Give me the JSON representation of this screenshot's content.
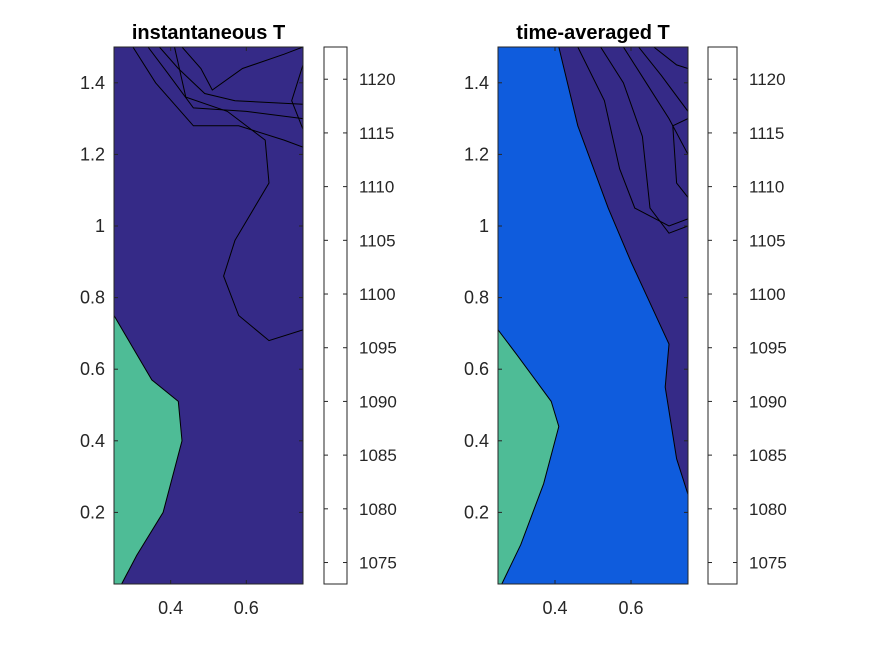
{
  "chart_data": [
    {
      "type": "contour",
      "title": "instantaneous T",
      "xlabel": "",
      "ylabel": "",
      "xlim": [
        0.25,
        0.75
      ],
      "ylim": [
        0.0,
        1.5
      ],
      "xticks": [
        "0.4",
        "0.6"
      ],
      "yticks": [
        "0.2",
        "0.4",
        "0.6",
        "0.8",
        "1",
        "1.2",
        "1.4"
      ],
      "clim": [
        1073,
        1123
      ],
      "colorbar_ticks": [
        "1075",
        "1080",
        "1085",
        "1090",
        "1095",
        "1100",
        "1105",
        "1110",
        "1115",
        "1120"
      ],
      "regions": [
        {
          "level_label": "1075",
          "color": "#352a87"
        },
        {
          "level_label": "1100",
          "color": "#4ebc96"
        }
      ],
      "boundary_1100_region": [
        [
          0.25,
          0.75
        ],
        [
          0.3,
          0.66
        ],
        [
          0.35,
          0.57
        ],
        [
          0.42,
          0.51
        ],
        [
          0.43,
          0.4
        ],
        [
          0.38,
          0.2
        ],
        [
          0.31,
          0.08
        ],
        [
          0.27,
          0.0
        ]
      ],
      "contour_lines": [
        [
          [
            0.41,
            1.5
          ],
          [
            0.44,
            1.36
          ],
          [
            0.55,
            1.32
          ],
          [
            0.65,
            1.24
          ],
          [
            0.66,
            1.12
          ],
          [
            0.57,
            0.96
          ],
          [
            0.54,
            0.86
          ],
          [
            0.58,
            0.75
          ],
          [
            0.66,
            0.68
          ],
          [
            0.75,
            0.71
          ]
        ],
        [
          [
            0.3,
            1.5
          ],
          [
            0.36,
            1.4
          ],
          [
            0.46,
            1.28
          ],
          [
            0.58,
            1.28
          ],
          [
            0.7,
            1.24
          ],
          [
            0.75,
            1.22
          ]
        ],
        [
          [
            0.34,
            1.5
          ],
          [
            0.39,
            1.43
          ],
          [
            0.46,
            1.33
          ],
          [
            0.6,
            1.32
          ],
          [
            0.75,
            1.3
          ]
        ],
        [
          [
            0.37,
            1.5
          ],
          [
            0.42,
            1.44
          ],
          [
            0.49,
            1.37
          ],
          [
            0.57,
            1.35
          ],
          [
            0.75,
            1.34
          ]
        ],
        [
          [
            0.43,
            1.5
          ],
          [
            0.48,
            1.44
          ],
          [
            0.51,
            1.38
          ],
          [
            0.59,
            1.44
          ],
          [
            0.7,
            1.48
          ],
          [
            0.75,
            1.5
          ]
        ],
        [
          [
            0.75,
            1.45
          ],
          [
            0.72,
            1.35
          ],
          [
            0.75,
            1.27
          ]
        ]
      ]
    },
    {
      "type": "contour",
      "title": "time-averaged T",
      "xlabel": "",
      "ylabel": "",
      "xlim": [
        0.25,
        0.75
      ],
      "ylim": [
        0.0,
        1.5
      ],
      "xticks": [
        "0.4",
        "0.6"
      ],
      "yticks": [
        "0.2",
        "0.4",
        "0.6",
        "0.8",
        "1",
        "1.2",
        "1.4"
      ],
      "clim": [
        1073,
        1123
      ],
      "colorbar_ticks": [
        "1075",
        "1080",
        "1085",
        "1090",
        "1095",
        "1100",
        "1105",
        "1110",
        "1115",
        "1120"
      ],
      "regions": [
        {
          "level_label": "1075",
          "color": "#352a87"
        },
        {
          "level_label": "1080",
          "color": "#0f5cdd"
        },
        {
          "level_label": "1100",
          "color": "#4ebc96"
        }
      ],
      "boundary_1100_region": [
        [
          0.25,
          0.71
        ],
        [
          0.3,
          0.64
        ],
        [
          0.39,
          0.51
        ],
        [
          0.41,
          0.44
        ],
        [
          0.37,
          0.28
        ],
        [
          0.31,
          0.11
        ],
        [
          0.26,
          0.0
        ]
      ],
      "boundary_1075_region": [
        [
          0.41,
          1.5
        ],
        [
          0.46,
          1.28
        ],
        [
          0.54,
          1.05
        ],
        [
          0.6,
          0.9
        ],
        [
          0.7,
          0.67
        ],
        [
          0.69,
          0.55
        ],
        [
          0.72,
          0.35
        ],
        [
          0.75,
          0.25
        ]
      ],
      "contour_lines": [
        [
          [
            0.46,
            1.5
          ],
          [
            0.53,
            1.35
          ],
          [
            0.57,
            1.16
          ],
          [
            0.61,
            1.05
          ],
          [
            0.7,
            1.0
          ],
          [
            0.75,
            1.02
          ]
        ],
        [
          [
            0.52,
            1.5
          ],
          [
            0.58,
            1.4
          ],
          [
            0.63,
            1.25
          ],
          [
            0.65,
            1.05
          ],
          [
            0.7,
            0.98
          ],
          [
            0.75,
            1.0
          ]
        ],
        [
          [
            0.58,
            1.5
          ],
          [
            0.64,
            1.4
          ],
          [
            0.7,
            1.3
          ],
          [
            0.75,
            1.2
          ]
        ],
        [
          [
            0.62,
            1.5
          ],
          [
            0.68,
            1.42
          ],
          [
            0.75,
            1.32
          ]
        ],
        [
          [
            0.66,
            1.5
          ],
          [
            0.72,
            1.45
          ],
          [
            0.75,
            1.44
          ]
        ],
        [
          [
            0.75,
            1.08
          ],
          [
            0.72,
            1.12
          ],
          [
            0.71,
            1.28
          ],
          [
            0.75,
            1.3
          ]
        ]
      ]
    }
  ]
}
